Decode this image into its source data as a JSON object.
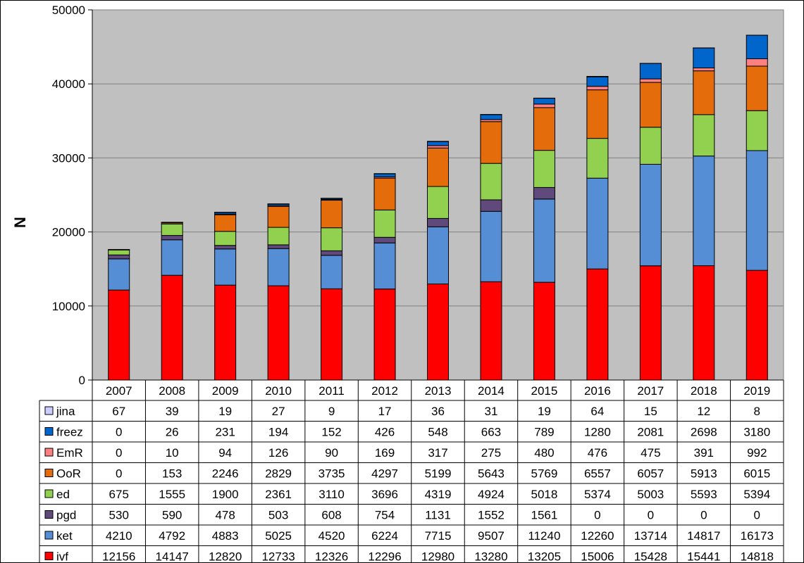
{
  "chart_data": {
    "type": "bar",
    "stacked": true,
    "ylabel": "N",
    "ylim": [
      0,
      50000
    ],
    "y_ticks": [
      "0",
      "10000",
      "20000",
      "30000",
      "40000",
      "50000"
    ],
    "grid": true,
    "legend": "data-table-left",
    "categories": [
      "2007",
      "2008",
      "2009",
      "2010",
      "2011",
      "2012",
      "2013",
      "2014",
      "2015",
      "2016",
      "2017",
      "2018",
      "2019"
    ],
    "series": [
      {
        "name": "ivf",
        "color": "#ff0000",
        "values": [
          12156,
          14147,
          12820,
          12733,
          12326,
          12296,
          12980,
          13280,
          13205,
          15006,
          15428,
          15441,
          14818
        ]
      },
      {
        "name": "ket",
        "color": "#558ed5",
        "values": [
          4210,
          4792,
          4883,
          5025,
          4520,
          6224,
          7715,
          9507,
          11240,
          12260,
          13714,
          14817,
          16173
        ]
      },
      {
        "name": "pgd",
        "color": "#604a7b",
        "values": [
          530,
          590,
          478,
          503,
          608,
          754,
          1131,
          1552,
          1561,
          0,
          0,
          0,
          0
        ]
      },
      {
        "name": "ed",
        "color": "#92d050",
        "values": [
          675,
          1555,
          1900,
          2361,
          3110,
          3696,
          4319,
          4924,
          5018,
          5374,
          5003,
          5593,
          5394
        ]
      },
      {
        "name": "OoR",
        "color": "#e46c0a",
        "values": [
          0,
          153,
          2246,
          2829,
          3735,
          4297,
          5199,
          5643,
          5769,
          6557,
          6057,
          5913,
          6015
        ]
      },
      {
        "name": "EmR",
        "color": "#ff8080",
        "values": [
          0,
          10,
          94,
          126,
          90,
          169,
          317,
          275,
          480,
          476,
          475,
          391,
          992
        ]
      },
      {
        "name": "freez",
        "color": "#0066cc",
        "values": [
          0,
          26,
          231,
          194,
          152,
          426,
          548,
          663,
          789,
          1280,
          2081,
          2698,
          3180
        ]
      },
      {
        "name": "jina",
        "color": "#ccccff",
        "values": [
          67,
          39,
          19,
          27,
          9,
          17,
          36,
          31,
          19,
          64,
          15,
          12,
          8
        ]
      }
    ],
    "table_order": [
      "jina",
      "freez",
      "EmR",
      "OoR",
      "ed",
      "pgd",
      "ket",
      "ivf"
    ],
    "plot_background": "#c0c0c0"
  }
}
